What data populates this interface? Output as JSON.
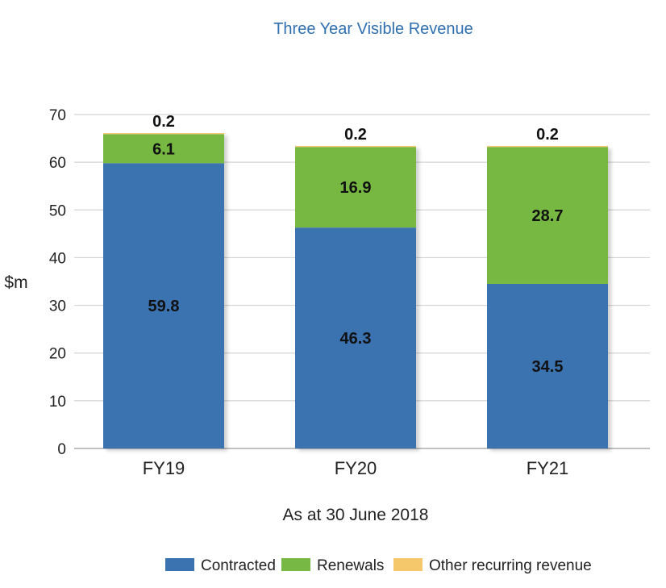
{
  "chart_data": {
    "type": "bar",
    "stacked": true,
    "title": "Three Year Visible Revenue",
    "xlabel": "As at 30 June 2018",
    "ylabel": "$m",
    "ylim": [
      0,
      70
    ],
    "yticks": [
      0,
      10,
      20,
      30,
      40,
      50,
      60,
      70
    ],
    "grid": true,
    "legend_position": "bottom",
    "categories": [
      "FY19",
      "FY20",
      "FY21"
    ],
    "series": [
      {
        "name": "Contracted",
        "color": "#3b72b0",
        "values": [
          59.8,
          46.3,
          34.5
        ],
        "labels": [
          "59.8",
          "46.3",
          "34.5"
        ]
      },
      {
        "name": "Renewals",
        "color": "#76b843",
        "values": [
          6.1,
          16.9,
          28.7
        ],
        "labels": [
          "6.1",
          "16.9",
          "28.7"
        ]
      },
      {
        "name": "Other recurring revenue",
        "color": "#f5c96b",
        "values": [
          0.2,
          0.2,
          0.2
        ],
        "labels": [
          "0.2",
          "0.2",
          "0.2"
        ]
      }
    ]
  }
}
